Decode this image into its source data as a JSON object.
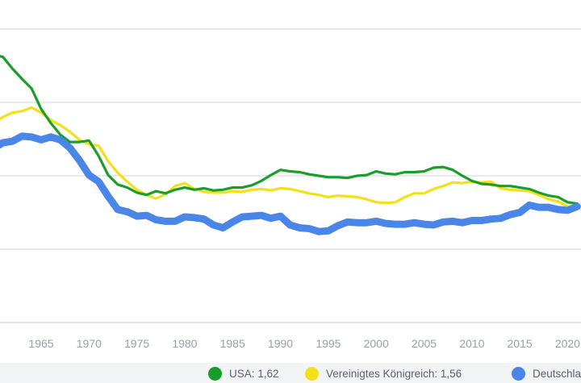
{
  "chart_data": {
    "type": "line",
    "xlim": [
      1960.7,
      2021.4
    ],
    "ylim": [
      0.0,
      4.0
    ],
    "grid": true,
    "x_ticks": [
      "1965",
      "1970",
      "1975",
      "1980",
      "1985",
      "1990",
      "1995",
      "2000",
      "2005",
      "2010",
      "2015",
      "2020"
    ],
    "colors": [
      "#1a9e2a",
      "#f3e01a",
      "#4a86e8"
    ],
    "legend_position": "bottom",
    "series": [
      {
        "name": "USA",
        "label": "USA: 1,62",
        "color": "#1a9e2a",
        "x": [
          1960,
          1961,
          1962,
          1963,
          1964,
          1965,
          1966,
          1967,
          1968,
          1969,
          1970,
          1971,
          1972,
          1973,
          1974,
          1975,
          1976,
          1977,
          1978,
          1979,
          1980,
          1981,
          1982,
          1983,
          1984,
          1985,
          1986,
          1987,
          1988,
          1989,
          1990,
          1991,
          1992,
          1993,
          1994,
          1995,
          1996,
          1997,
          1998,
          1999,
          2000,
          2001,
          2002,
          2003,
          2004,
          2005,
          2006,
          2007,
          2008,
          2009,
          2010,
          2011,
          2012,
          2013,
          2014,
          2015,
          2016,
          2017,
          2018,
          2019,
          2020,
          2021
        ],
        "values": [
          3.65,
          3.62,
          3.46,
          3.32,
          3.19,
          2.91,
          2.72,
          2.56,
          2.46,
          2.46,
          2.48,
          2.27,
          2.01,
          1.88,
          1.84,
          1.77,
          1.74,
          1.79,
          1.76,
          1.81,
          1.84,
          1.81,
          1.83,
          1.8,
          1.81,
          1.84,
          1.84,
          1.87,
          1.93,
          2.01,
          2.08,
          2.06,
          2.05,
          2.02,
          2.0,
          1.98,
          1.98,
          1.97,
          2.0,
          2.01,
          2.06,
          2.03,
          2.02,
          2.05,
          2.05,
          2.06,
          2.11,
          2.12,
          2.08,
          2.0,
          1.93,
          1.89,
          1.88,
          1.86,
          1.86,
          1.84,
          1.82,
          1.77,
          1.73,
          1.71,
          1.64,
          1.62
        ]
      },
      {
        "name": "Vereinigtes Königreich",
        "label": "Vereinigtes Königreich: 1,56",
        "color": "#f3e01a",
        "x": [
          1960,
          1961,
          1962,
          1963,
          1964,
          1965,
          1966,
          1967,
          1968,
          1969,
          1970,
          1971,
          1972,
          1973,
          1974,
          1975,
          1976,
          1977,
          1978,
          1979,
          1980,
          1981,
          1982,
          1983,
          1984,
          1985,
          1986,
          1987,
          1988,
          1989,
          1990,
          1991,
          1992,
          1993,
          1994,
          1995,
          1996,
          1997,
          1998,
          1999,
          2000,
          2001,
          2002,
          2003,
          2004,
          2005,
          2006,
          2007,
          2008,
          2009,
          2010,
          2011,
          2012,
          2013,
          2014,
          2015,
          2016,
          2017,
          2018,
          2019,
          2020,
          2021
        ],
        "values": [
          2.72,
          2.8,
          2.86,
          2.88,
          2.93,
          2.86,
          2.76,
          2.69,
          2.6,
          2.49,
          2.43,
          2.41,
          2.2,
          2.04,
          1.92,
          1.81,
          1.74,
          1.69,
          1.75,
          1.86,
          1.9,
          1.82,
          1.78,
          1.77,
          1.77,
          1.79,
          1.78,
          1.81,
          1.82,
          1.8,
          1.83,
          1.82,
          1.79,
          1.76,
          1.74,
          1.71,
          1.73,
          1.72,
          1.71,
          1.68,
          1.64,
          1.63,
          1.64,
          1.71,
          1.76,
          1.76,
          1.82,
          1.86,
          1.91,
          1.9,
          1.92,
          1.91,
          1.92,
          1.83,
          1.81,
          1.8,
          1.79,
          1.74,
          1.68,
          1.65,
          1.58,
          1.56
        ]
      },
      {
        "name": "Deutschland",
        "label": "Deutschland",
        "color": "#4a86e8",
        "x": [
          1960,
          1961,
          1962,
          1963,
          1964,
          1965,
          1966,
          1967,
          1968,
          1969,
          1970,
          1971,
          1972,
          1973,
          1974,
          1975,
          1976,
          1977,
          1978,
          1979,
          1980,
          1981,
          1982,
          1983,
          1984,
          1985,
          1986,
          1987,
          1988,
          1989,
          1990,
          1991,
          1992,
          1993,
          1994,
          1995,
          1996,
          1997,
          1998,
          1999,
          2000,
          2001,
          2002,
          2003,
          2004,
          2005,
          2006,
          2007,
          2008,
          2009,
          2010,
          2011,
          2012,
          2013,
          2014,
          2015,
          2016,
          2017,
          2018,
          2019,
          2020,
          2021
        ],
        "values": [
          2.37,
          2.45,
          2.47,
          2.54,
          2.53,
          2.49,
          2.53,
          2.49,
          2.38,
          2.21,
          2.01,
          1.92,
          1.72,
          1.54,
          1.51,
          1.45,
          1.46,
          1.4,
          1.38,
          1.38,
          1.44,
          1.43,
          1.41,
          1.33,
          1.29,
          1.37,
          1.44,
          1.45,
          1.46,
          1.42,
          1.45,
          1.33,
          1.29,
          1.28,
          1.24,
          1.25,
          1.32,
          1.37,
          1.36,
          1.36,
          1.38,
          1.35,
          1.34,
          1.34,
          1.36,
          1.34,
          1.33,
          1.37,
          1.38,
          1.36,
          1.39,
          1.39,
          1.41,
          1.42,
          1.47,
          1.5,
          1.6,
          1.57,
          1.57,
          1.54,
          1.53,
          1.58
        ]
      }
    ]
  }
}
